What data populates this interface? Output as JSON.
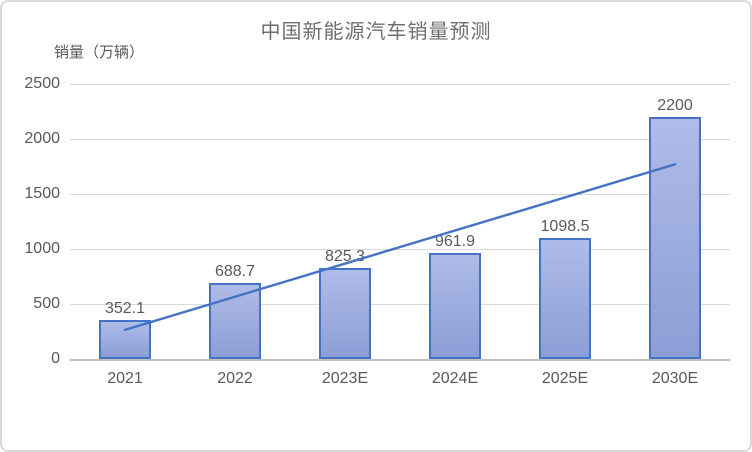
{
  "frame": {
    "background": "#FFFFFF",
    "border_color": "#D9D9D9"
  },
  "chart_data": {
    "type": "bar",
    "title": "中国新能源汽车销量预测",
    "ylabel": "销量（万辆）",
    "xlabel": "",
    "categories": [
      "2021",
      "2022",
      "2023E",
      "2024E",
      "2025E",
      "2030E"
    ],
    "values": [
      352.1,
      688.7,
      825.3,
      961.9,
      1098.5,
      2200
    ],
    "data_labels": [
      "352.1",
      "688.7",
      "825.3",
      "961.9",
      "1098.5",
      "2200"
    ],
    "ylim": [
      0,
      2500
    ],
    "ytick_interval": 500,
    "ytick_labels": [
      "2500",
      "2000",
      "1500",
      "1000",
      "500",
      "0"
    ],
    "grid": true,
    "legend": "none",
    "trendline": {
      "type": "linear",
      "start_category": "2021",
      "end_category": "2030E",
      "start_value": 265,
      "end_value": 1770
    },
    "colors": {
      "bar_fill_top": "#AFBCE8",
      "bar_fill_bottom": "#8C9ED6",
      "bar_border": "#4472C4",
      "trendline": "#4472C4",
      "gridline": "#D9D9D9",
      "axis_line": "#BFBFBF",
      "text": "#595959",
      "title": "#6E6E6E"
    }
  }
}
